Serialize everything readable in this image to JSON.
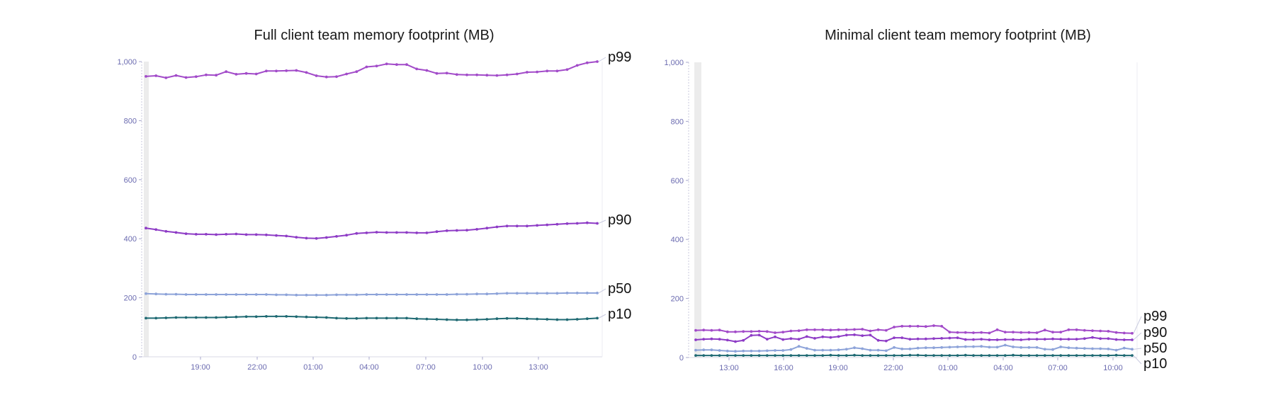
{
  "chart_data": [
    {
      "type": "line",
      "title": "Full client team memory footprint (MB)",
      "ylim": [
        0,
        1000
      ],
      "y_ticks": [
        "0",
        "200",
        "400",
        "600",
        "800",
        "1,000"
      ],
      "x_ticks": [
        "19:00",
        "22:00",
        "01:00",
        "04:00",
        "07:00",
        "10:00",
        "13:00"
      ],
      "end_labels": "right",
      "series": [
        {
          "name": "p99",
          "color": "#a24bc9",
          "values": [
            950,
            952,
            945,
            953,
            946,
            949,
            955,
            954,
            966,
            957,
            960,
            958,
            968,
            968,
            969,
            970,
            963,
            952,
            948,
            949,
            958,
            966,
            982,
            985,
            992,
            990,
            990,
            975,
            970,
            960,
            961,
            956,
            955,
            955,
            954,
            953,
            955,
            958,
            964,
            965,
            968,
            968,
            973,
            987,
            996,
            1000
          ]
        },
        {
          "name": "p90",
          "color": "#8e3cc6",
          "values": [
            436,
            431,
            425,
            421,
            417,
            415,
            415,
            414,
            415,
            416,
            414,
            414,
            413,
            411,
            409,
            405,
            402,
            401,
            404,
            408,
            412,
            418,
            420,
            422,
            421,
            421,
            421,
            420,
            420,
            424,
            427,
            428,
            429,
            432,
            436,
            440,
            443,
            443,
            443,
            445,
            447,
            449,
            451,
            452,
            454,
            452
          ]
        },
        {
          "name": "p50",
          "color": "#8da3d9",
          "values": [
            214,
            213,
            212,
            212,
            211,
            211,
            211,
            211,
            211,
            211,
            211,
            211,
            211,
            210,
            210,
            209,
            209,
            209,
            209,
            210,
            210,
            210,
            211,
            211,
            211,
            211,
            211,
            211,
            211,
            211,
            211,
            212,
            212,
            213,
            213,
            214,
            215,
            215,
            215,
            215,
            215,
            215,
            216,
            216,
            216,
            216
          ]
        },
        {
          "name": "p10",
          "color": "#1f6a73",
          "values": [
            131,
            131,
            132,
            133,
            133,
            133,
            133,
            133,
            134,
            135,
            136,
            136,
            137,
            137,
            137,
            136,
            135,
            134,
            133,
            131,
            130,
            130,
            131,
            131,
            131,
            131,
            131,
            129,
            128,
            127,
            126,
            125,
            125,
            126,
            127,
            129,
            130,
            130,
            129,
            128,
            127,
            126,
            126,
            127,
            129,
            131
          ]
        }
      ]
    },
    {
      "type": "line",
      "title": "Minimal client team memory footprint (MB)",
      "ylim": [
        0,
        1000
      ],
      "y_ticks": [
        "0",
        "200",
        "400",
        "600",
        "800",
        "1,000"
      ],
      "x_ticks": [
        "13:00",
        "16:00",
        "19:00",
        "22:00",
        "01:00",
        "04:00",
        "07:00",
        "10:00"
      ],
      "end_labels": "right",
      "series": [
        {
          "name": "p99",
          "color": "#a24bc9",
          "values": [
            92,
            93,
            92,
            93,
            87,
            87,
            88,
            88,
            89,
            88,
            84,
            86,
            90,
            91,
            94,
            94,
            94,
            93,
            94,
            94,
            95,
            96,
            90,
            94,
            92,
            103,
            106,
            106,
            106,
            105,
            108,
            106,
            86,
            85,
            85,
            84,
            85,
            83,
            94,
            86,
            86,
            85,
            85,
            84,
            93,
            86,
            86,
            94,
            94,
            92,
            91,
            90,
            89,
            85,
            83,
            82
          ]
        },
        {
          "name": "p90",
          "color": "#8e3cc6",
          "values": [
            60,
            62,
            63,
            62,
            59,
            54,
            58,
            75,
            76,
            62,
            70,
            61,
            64,
            62,
            71,
            65,
            70,
            68,
            71,
            76,
            77,
            74,
            76,
            58,
            56,
            67,
            67,
            62,
            63,
            63,
            64,
            65,
            66,
            67,
            61,
            61,
            62,
            60,
            60,
            61,
            61,
            60,
            62,
            62,
            62,
            63,
            62,
            62,
            62,
            64,
            68,
            64,
            64,
            61,
            60,
            60
          ]
        },
        {
          "name": "p50",
          "color": "#8da3d9",
          "values": [
            25,
            26,
            26,
            24,
            22,
            21,
            22,
            22,
            22,
            23,
            24,
            24,
            27,
            38,
            31,
            25,
            25,
            25,
            26,
            28,
            33,
            30,
            25,
            25,
            23,
            34,
            29,
            29,
            32,
            33,
            33,
            34,
            35,
            36,
            37,
            37,
            38,
            35,
            35,
            42,
            36,
            34,
            34,
            34,
            28,
            27,
            36,
            33,
            32,
            31,
            30,
            30,
            29,
            25,
            32,
            28
          ]
        },
        {
          "name": "p10",
          "color": "#1f6a73",
          "values": [
            7,
            7,
            7,
            7,
            7,
            7,
            7,
            7,
            7,
            7,
            7,
            7,
            7,
            7,
            7,
            7,
            7,
            8,
            7,
            7,
            8,
            7,
            7,
            7,
            7,
            7,
            7,
            8,
            8,
            7,
            7,
            7,
            7,
            7,
            8,
            7,
            7,
            7,
            7,
            7,
            8,
            7,
            7,
            7,
            7,
            7,
            7,
            7,
            7,
            7,
            7,
            7,
            7,
            8,
            7,
            7
          ]
        }
      ]
    }
  ]
}
